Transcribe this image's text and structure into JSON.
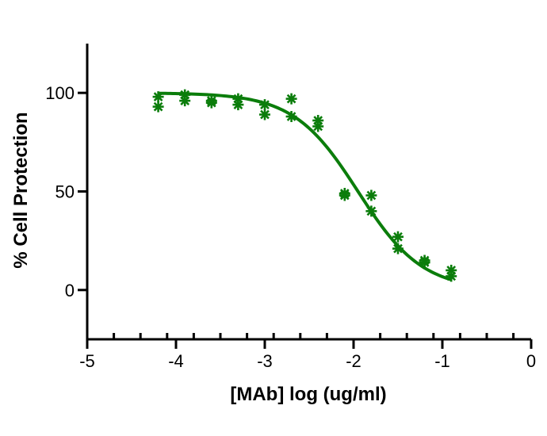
{
  "chart_data": {
    "type": "scatter",
    "xlabel": "[MAb] log (ug/ml)",
    "ylabel": "% Cell Protection",
    "xlim": [
      -5,
      0
    ],
    "ylim": [
      -25,
      125
    ],
    "xticks": [
      -5,
      -4,
      -3,
      -2,
      -1,
      0
    ],
    "yticks": [
      0,
      50,
      100
    ],
    "x_minor_step": 0.3,
    "grid": false,
    "color": "#0b7d0b",
    "points": [
      {
        "x": -4.2,
        "y": 98
      },
      {
        "x": -4.2,
        "y": 93
      },
      {
        "x": -3.9,
        "y": 99
      },
      {
        "x": -3.9,
        "y": 96
      },
      {
        "x": -3.6,
        "y": 96
      },
      {
        "x": -3.6,
        "y": 95
      },
      {
        "x": -3.3,
        "y": 97
      },
      {
        "x": -3.3,
        "y": 94
      },
      {
        "x": -3.0,
        "y": 94
      },
      {
        "x": -3.0,
        "y": 89
      },
      {
        "x": -2.7,
        "y": 97
      },
      {
        "x": -2.7,
        "y": 88
      },
      {
        "x": -2.4,
        "y": 86
      },
      {
        "x": -2.4,
        "y": 83
      },
      {
        "x": -2.1,
        "y": 49
      },
      {
        "x": -2.1,
        "y": 48
      },
      {
        "x": -1.8,
        "y": 48
      },
      {
        "x": -1.8,
        "y": 40
      },
      {
        "x": -1.5,
        "y": 27
      },
      {
        "x": -1.5,
        "y": 21
      },
      {
        "x": -1.2,
        "y": 15
      },
      {
        "x": -1.2,
        "y": 14
      },
      {
        "x": -0.9,
        "y": 10
      },
      {
        "x": -0.9,
        "y": 7
      }
    ],
    "fit": {
      "model": "four-parameter logistic",
      "bottom": 0,
      "top": 100,
      "log_ec50": -1.95,
      "hill": 1.2,
      "x_range": [
        -4.2,
        -0.9
      ]
    }
  }
}
